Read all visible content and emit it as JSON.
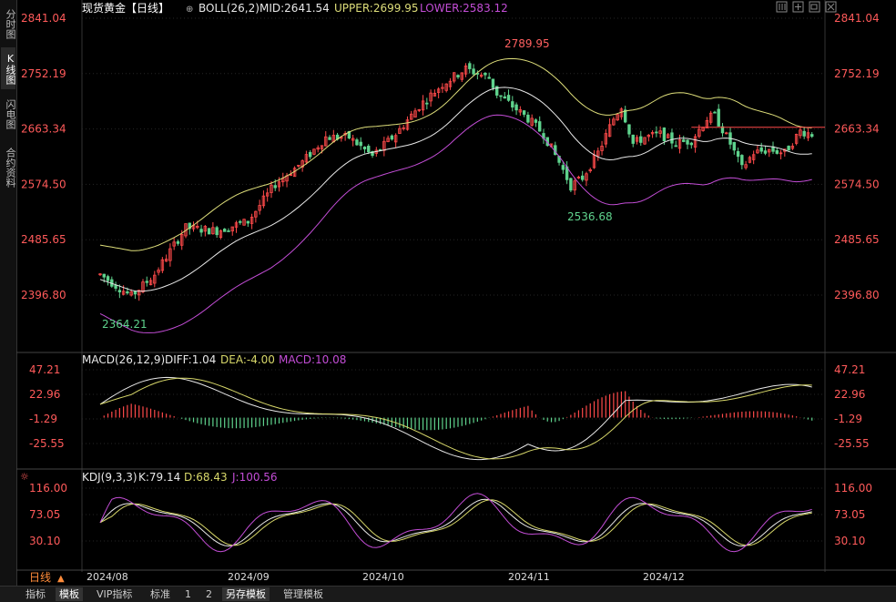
{
  "sidebar": {
    "tabs": [
      {
        "label": "分时图",
        "active": false
      },
      {
        "label": "K线图",
        "active": true
      },
      {
        "label": "闪电图",
        "active": false
      },
      {
        "label": "合约资料",
        "active": false
      }
    ]
  },
  "header": {
    "symbol": "现货黄金【日线】",
    "boll_label": "BOLL(26,2)",
    "mid": "MID:2641.54",
    "upper": "UPPER:2699.95",
    "lower": "LOWER:2583.12"
  },
  "toolbar_icons": [
    "grid-icon",
    "crosshair-icon",
    "restore-icon",
    "close-icon"
  ],
  "price_axis": {
    "ticks": [
      "2841.04",
      "2752.19",
      "2663.34",
      "2574.50",
      "2485.65",
      "2396.80"
    ],
    "values": [
      2841.04,
      2752.19,
      2663.34,
      2574.5,
      2485.65,
      2396.8
    ]
  },
  "macd": {
    "label": "MACD(26,12,9)",
    "diff": "DIFF:1.04",
    "dea": "DEA:-4.00",
    "macd": "MACD:10.08",
    "ticks": [
      "47.21",
      "22.96",
      "-1.29",
      "-25.55"
    ]
  },
  "kdj": {
    "label": "KDJ(9,3,3)",
    "k": "K:79.14",
    "d": "D:68.43",
    "j": "J:100.56",
    "ticks": [
      "116.00",
      "73.05",
      "30.10"
    ]
  },
  "annotations": {
    "high": "2789.95",
    "low_mid": "2536.68",
    "low_start": "2364.21"
  },
  "timeframe": "日线",
  "dates": [
    "2024/08",
    "2024/09",
    "2024/10",
    "2024/11",
    "2024/12"
  ],
  "bottom_tabs": [
    {
      "label": "指标",
      "active": false
    },
    {
      "label": "模板",
      "active": true
    },
    {
      "label": "VIP指标",
      "active": false
    },
    {
      "label": "标准",
      "active": false
    },
    {
      "label": "1",
      "active": false
    },
    {
      "label": "2",
      "active": false
    },
    {
      "label": "另存模板",
      "active": true
    },
    {
      "label": "管理模板",
      "active": false
    }
  ],
  "colors": {
    "up": "#ff4a4a",
    "down": "#5fd38d",
    "mid": "#e8e8e8",
    "upper": "#dede7a",
    "lower": "#c34dd6",
    "axis_text": "#ff5a5a",
    "diff": "#e8e8e8",
    "dea": "#d8d86a",
    "macd_label": "#c34dd6",
    "kdj_k": "#e8e8e8",
    "kdj_d": "#d8d86a",
    "kdj_j": "#c34dd6"
  }
}
